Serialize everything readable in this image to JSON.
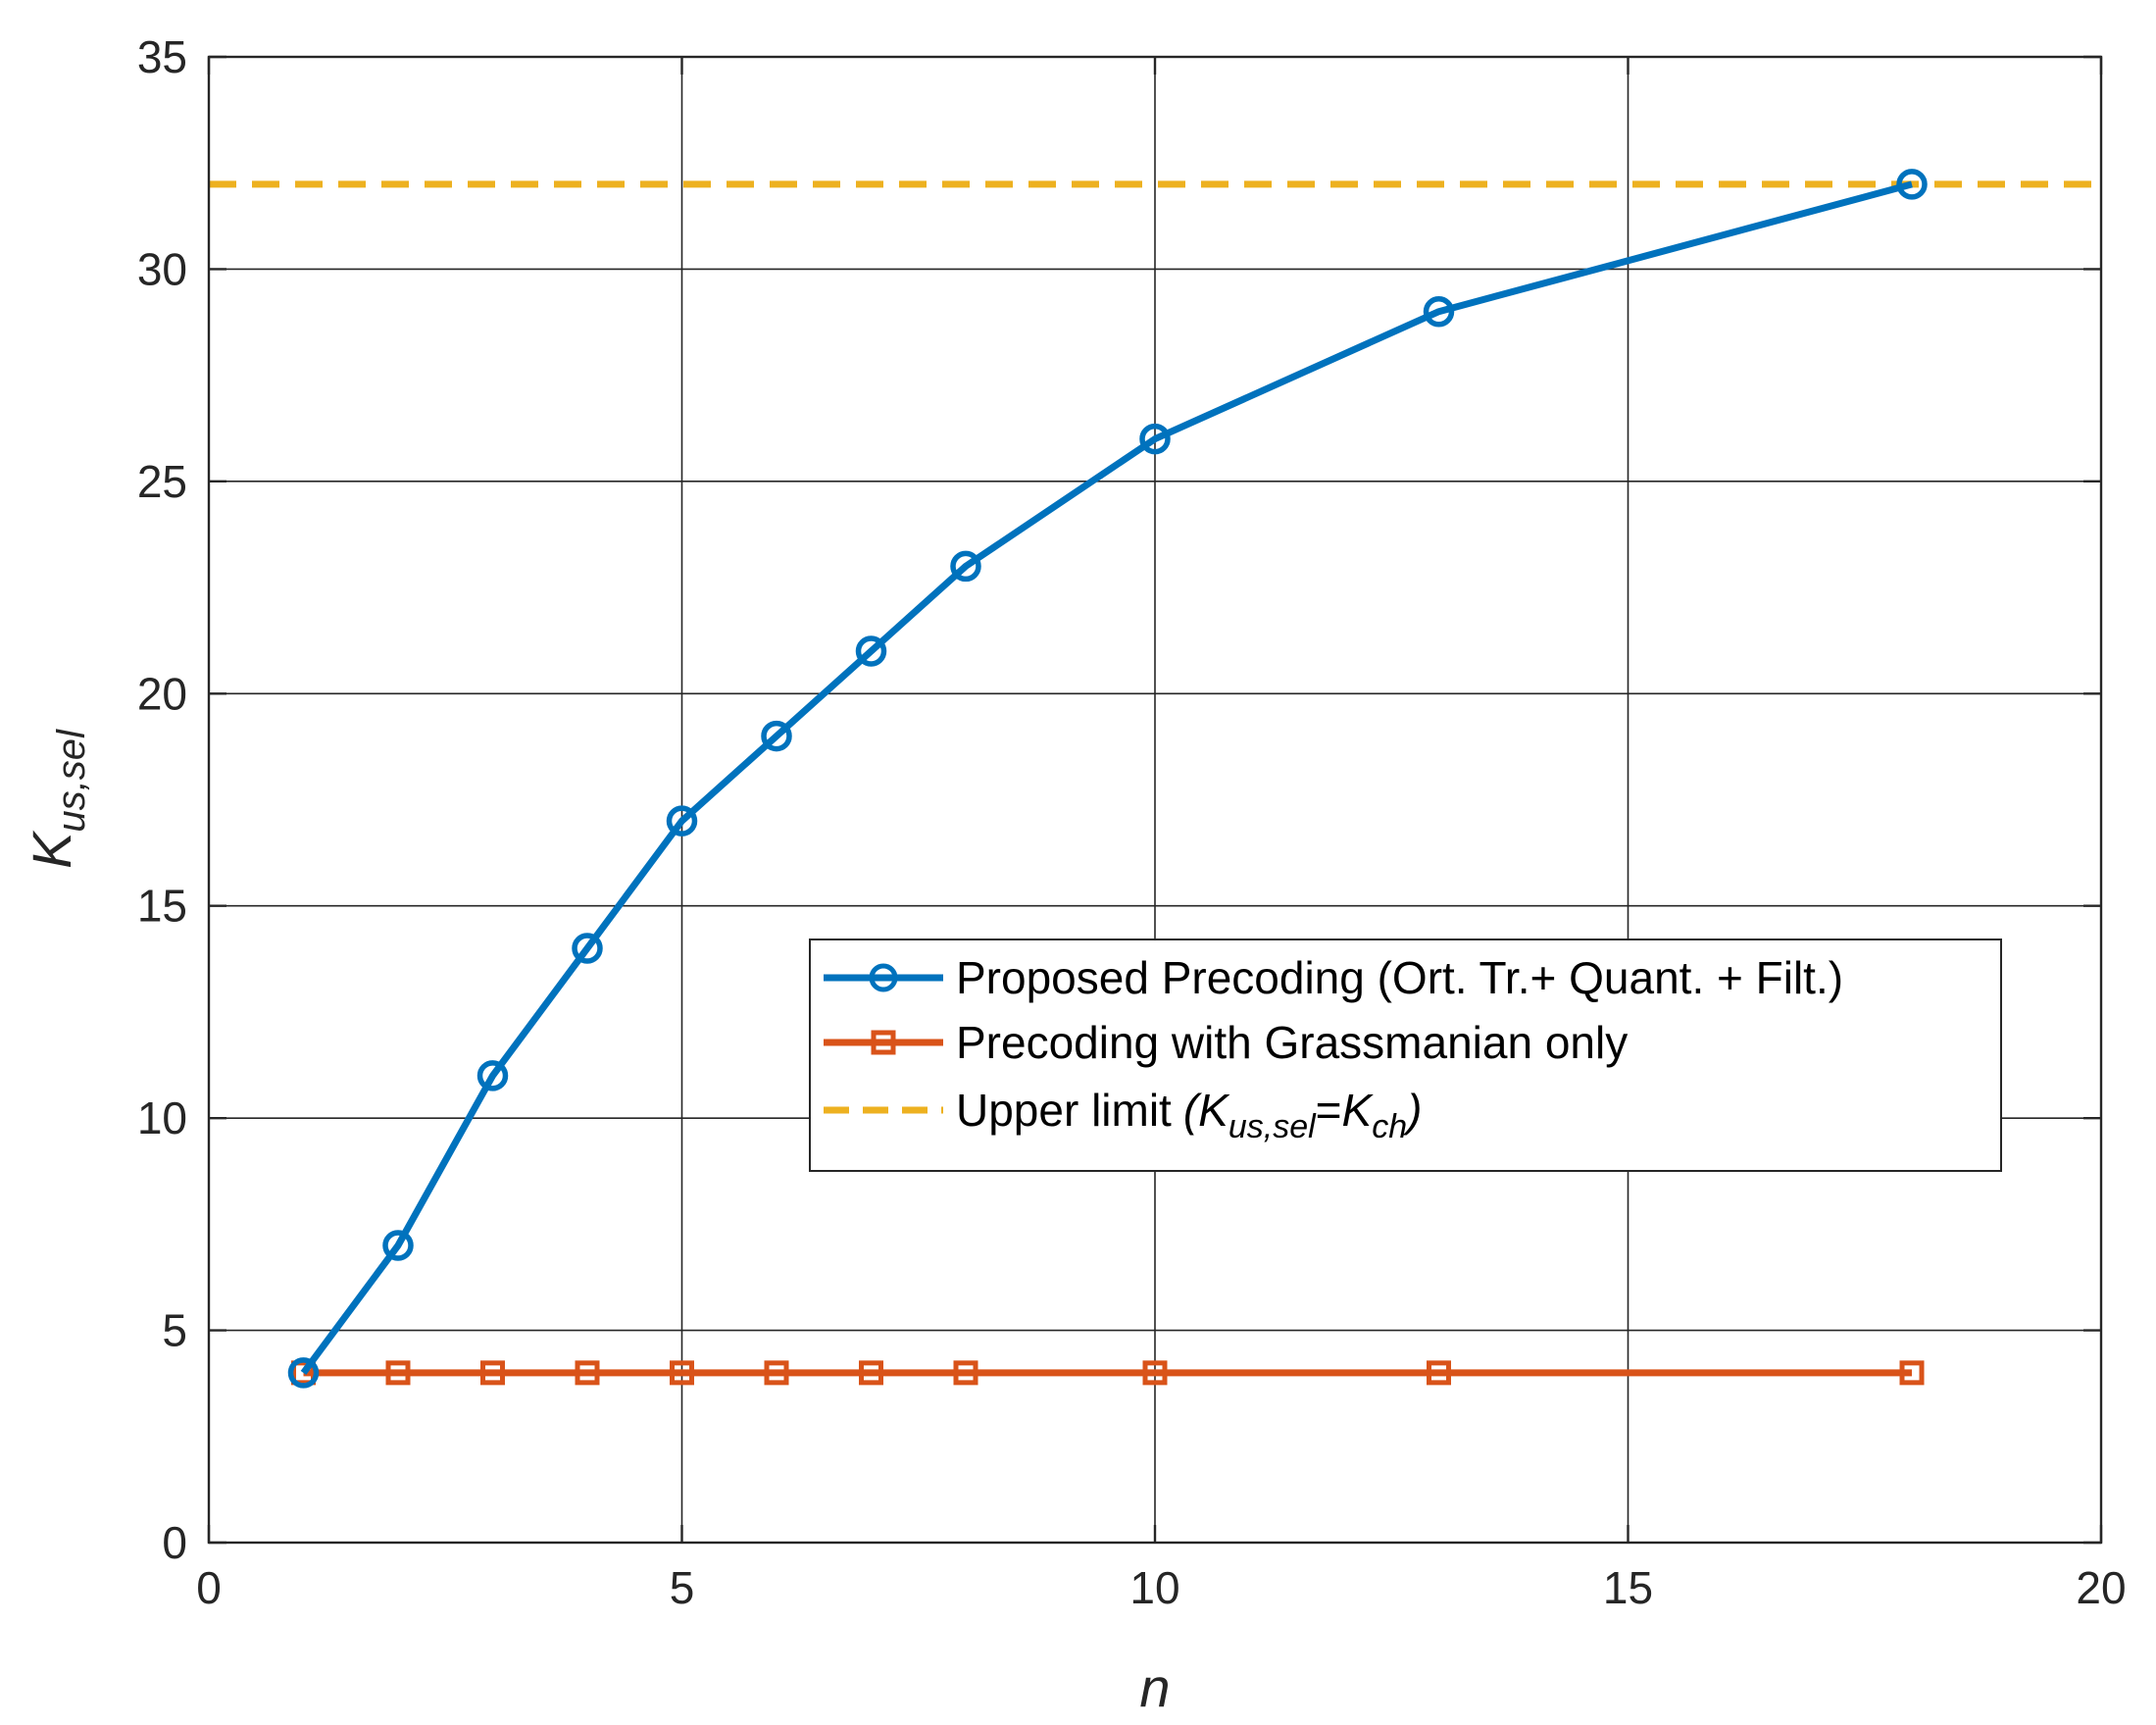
{
  "chart_data": {
    "type": "line",
    "xlabel": "n",
    "ylabel": {
      "main": "K",
      "sub": "us,sel"
    },
    "xlim": [
      0,
      20
    ],
    "ylim": [
      0,
      35
    ],
    "xticks": [
      "0",
      "5",
      "10",
      "15",
      "20"
    ],
    "yticks": [
      "0",
      "5",
      "10",
      "15",
      "20",
      "25",
      "30",
      "35"
    ],
    "grid": true,
    "legend_position": "center-right",
    "series": [
      {
        "name": "Proposed Precoding (Ort. Tr.+ Quant. + Filt.)",
        "marker": "circle",
        "color": "#0072BD",
        "x": [
          1,
          2,
          3,
          4,
          5,
          6,
          7,
          8,
          10,
          13,
          18
        ],
        "y": [
          4,
          7,
          11,
          14,
          17,
          19,
          21,
          23,
          26,
          29,
          32
        ]
      },
      {
        "name": "Precoding with Grassmanian only",
        "marker": "square",
        "color": "#D95319",
        "x": [
          1,
          2,
          3,
          4,
          5,
          6,
          7,
          8,
          10,
          13,
          18
        ],
        "y": [
          4,
          4,
          4,
          4,
          4,
          4,
          4,
          4,
          4,
          4,
          4
        ]
      },
      {
        "name": "Upper limit",
        "name_math": {
          "open": "(",
          "k1": "K",
          "s1": "us,sel",
          "eq": "=",
          "k2": "K",
          "s2": "ch",
          "close": ")"
        },
        "style": "dashed",
        "color": "#EDB120",
        "x": [
          0,
          20
        ],
        "y": [
          32,
          32
        ]
      }
    ]
  }
}
